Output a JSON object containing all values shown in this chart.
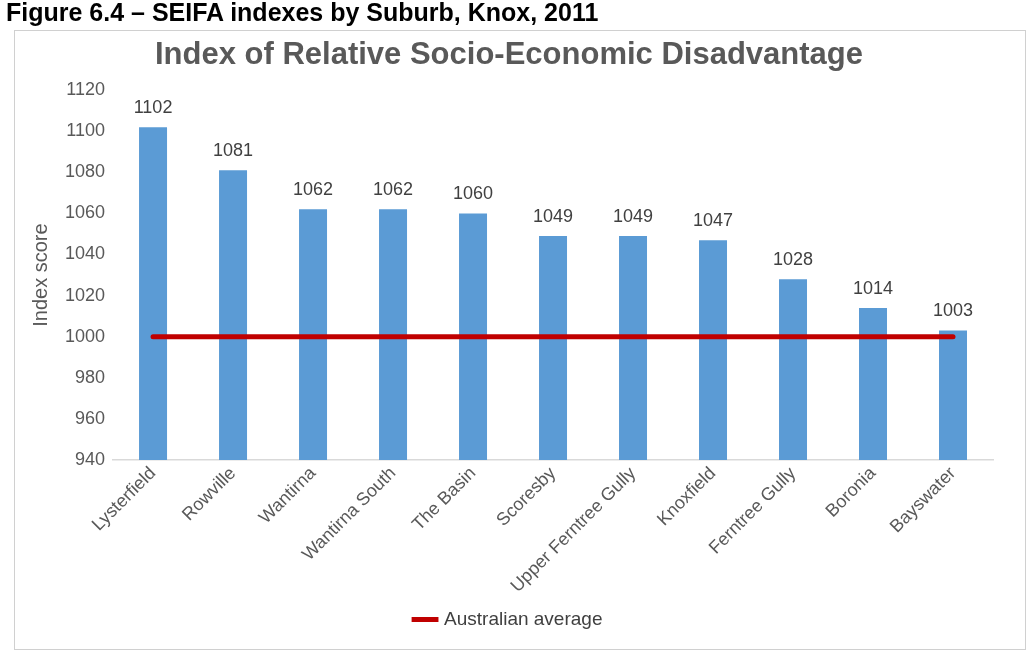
{
  "chart_data": {
    "type": "bar",
    "title": "Index of Relative Socio-Economic Disadvantage",
    "annotations": [
      "Figure 6.4 – SEIFA indexes by Suburb, Knox, 2011"
    ],
    "ylabel": "Index score",
    "categories": [
      "Lysterfield",
      "Rowville",
      "Wantirna",
      "Wantirna South",
      "The Basin",
      "Scoresby",
      "Upper Ferntree Gully",
      "Knoxfield",
      "Ferntree Gully",
      "Boronia",
      "Bayswater"
    ],
    "series": [
      {
        "color": "#5b9bd5",
        "values": [
          1102,
          1081,
          1062,
          1062,
          1060,
          1049,
          1049,
          1047,
          1028,
          1014,
          1003
        ],
        "value_labels": [
          "1102",
          "1081",
          "1062",
          "1062",
          "1060",
          "1049",
          "1049",
          "1047",
          "1028",
          "1014",
          "1003"
        ]
      },
      {
        "type": "line",
        "name": "Australian average",
        "color": "#c00000",
        "values": [
          1000,
          1000,
          1000,
          1000,
          1000,
          1000,
          1000,
          1000,
          1000,
          1000,
          1000
        ]
      }
    ],
    "ylim": [
      940,
      1120
    ],
    "yticks": [
      940,
      960,
      980,
      1000,
      1020,
      1040,
      1060,
      1080,
      1100,
      1120
    ],
    "grid": false,
    "legend": "bottom",
    "marker": "none"
  }
}
